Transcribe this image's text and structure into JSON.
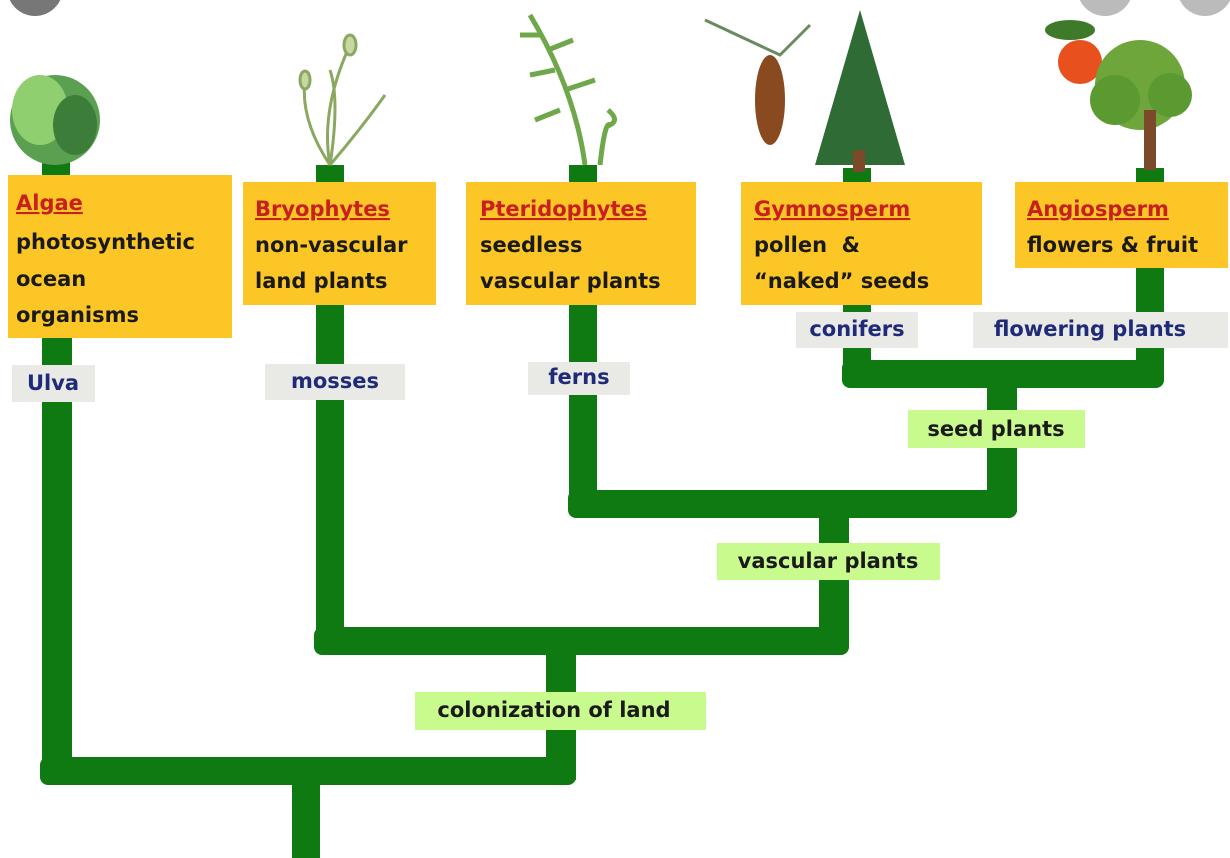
{
  "groups": [
    {
      "name": "Algae",
      "description": [
        "photosynthetic",
        "ocean",
        "organisms"
      ],
      "example": "Ulva"
    },
    {
      "name": "Bryophytes",
      "description": [
        "non-vascular",
        "land plants"
      ],
      "example": "mosses"
    },
    {
      "name": "Pteridophytes",
      "description": [
        "seedless",
        "vascular plants"
      ],
      "example": "ferns"
    },
    {
      "name": "Gymnosperm",
      "description": [
        "pollen  &",
        "“naked” seeds"
      ],
      "example": "conifers"
    },
    {
      "name": "Angiosperm",
      "description": [
        "flowers & fruit"
      ],
      "example": "flowering plants"
    }
  ],
  "clades": [
    "seed plants",
    "vascular plants",
    "colonization of land"
  ]
}
